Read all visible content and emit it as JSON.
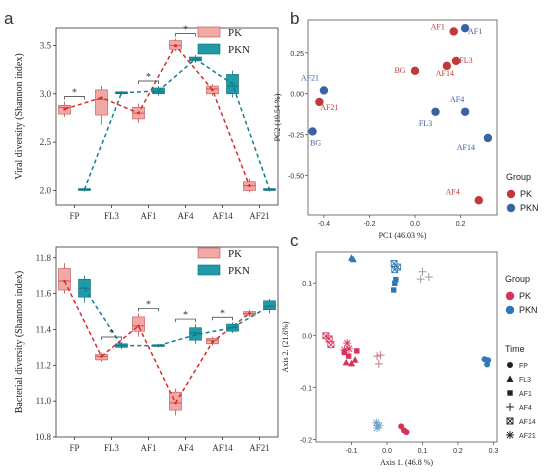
{
  "colors": {
    "pk": "#f2a8a5",
    "pk_edge": "#c0504d",
    "pk_line": "#d92b2b",
    "pkn": "#1f9aa8",
    "pkn_edge": "#176d78",
    "pkn_line": "#127f8c",
    "pca_pk": "#c0393b",
    "pca_pkn": "#3a62a2",
    "pcoa_pk": "#d6335a",
    "pcoa_pkn": "#2d79b8",
    "af4_pkn": "#9aa0a6",
    "af4_pk": "#c77a88"
  },
  "panel_labels": {
    "a": "a",
    "b": "b",
    "c": "c"
  },
  "chart_data": [
    {
      "type": "box",
      "panel": "a-top",
      "ylabel": "Viral diversity (Shannon index)",
      "ylim": [
        1.85,
        3.68
      ],
      "yticks": [
        "2.0",
        "2.5",
        "3.0",
        "3.5"
      ],
      "categories": [
        "FP",
        "FL3",
        "AF1",
        "AF4",
        "AF14",
        "AF21"
      ],
      "legend": [
        "PK",
        "PKN"
      ],
      "significance": [
        "*",
        "",
        "*",
        "*",
        "",
        ""
      ],
      "series": [
        {
          "name": "PK",
          "boxes": [
            [
              2.76,
              2.79,
              2.86,
              2.88,
              2.92
            ],
            [
              2.68,
              2.78,
              2.94,
              3.04,
              3.08
            ],
            [
              2.7,
              2.74,
              2.8,
              2.86,
              2.9
            ],
            [
              3.44,
              3.46,
              3.5,
              3.55,
              3.57
            ],
            [
              2.98,
              3.0,
              3.05,
              3.08,
              3.1
            ],
            [
              1.98,
              2.0,
              2.05,
              2.09,
              2.12
            ]
          ],
          "means": [
            2.84,
            2.96,
            2.8,
            3.5,
            3.04,
            2.05
          ]
        },
        {
          "name": "PKN",
          "boxes": [
            [
              1.99,
              2.0,
              2.01,
              2.02,
              2.03
            ],
            [
              2.99,
              3.0,
              3.01,
              3.02,
              3.03
            ],
            [
              2.98,
              3.0,
              3.02,
              3.06,
              3.08
            ],
            [
              3.32,
              3.34,
              3.36,
              3.38,
              3.4
            ],
            [
              2.96,
              3.0,
              3.08,
              3.2,
              3.24
            ],
            [
              1.99,
              2.0,
              2.01,
              2.02,
              2.03
            ]
          ],
          "means": [
            2.01,
            3.01,
            3.03,
            3.36,
            3.1,
            2.01
          ]
        }
      ]
    },
    {
      "type": "box",
      "panel": "a-bottom",
      "ylabel": "Bacterial diversity (Shannon index)",
      "ylim": [
        10.8,
        11.86
      ],
      "yticks": [
        "10.8",
        "11.0",
        "11.2",
        "11.4",
        "11.6",
        "11.8"
      ],
      "categories": [
        "FP",
        "FL3",
        "AF1",
        "AF4",
        "AF14",
        "AF21"
      ],
      "legend": [
        "PK",
        "PKN"
      ],
      "significance": [
        "",
        "*",
        "*",
        "*",
        "*",
        ""
      ],
      "series": [
        {
          "name": "PK",
          "boxes": [
            [
              11.6,
              11.62,
              11.67,
              11.74,
              11.77
            ],
            [
              11.22,
              11.23,
              11.25,
              11.26,
              11.27
            ],
            [
              11.36,
              11.39,
              11.42,
              11.47,
              11.49
            ],
            [
              10.92,
              10.95,
              10.99,
              11.05,
              11.07
            ],
            [
              11.31,
              11.32,
              11.34,
              11.35,
              11.36
            ],
            [
              11.47,
              11.48,
              11.49,
              11.5,
              11.51
            ]
          ],
          "means": [
            11.67,
            11.25,
            11.42,
            10.99,
            11.33,
            11.49
          ]
        },
        {
          "name": "PKN",
          "boxes": [
            [
              11.55,
              11.58,
              11.63,
              11.68,
              11.7
            ],
            [
              11.29,
              11.3,
              11.31,
              11.32,
              11.33
            ],
            [
              11.3,
              11.305,
              11.31,
              11.315,
              11.32
            ],
            [
              11.32,
              11.34,
              11.38,
              11.41,
              11.43
            ],
            [
              11.38,
              11.39,
              11.41,
              11.43,
              11.44
            ],
            [
              11.49,
              11.51,
              11.53,
              11.56,
              11.57
            ]
          ],
          "means": [
            11.63,
            11.31,
            11.31,
            11.37,
            11.41,
            11.53
          ]
        }
      ]
    },
    {
      "type": "scatter",
      "panel": "b",
      "xlabel": "PC1 (46.03 %)",
      "ylabel": "PC2 (19.54 %)",
      "xlim": [
        -0.47,
        0.36
      ],
      "ylim": [
        -0.74,
        0.45
      ],
      "xticks": [
        "-0.4",
        "-0.2",
        "0.0",
        "0.2"
      ],
      "yticks": [
        "0.25",
        "0.00",
        "-0.25",
        "-0.50"
      ],
      "legend_title": "Group",
      "legend": [
        "PK",
        "PKN"
      ],
      "points": [
        {
          "group": "PK",
          "label": "AF1",
          "x": 0.17,
          "y": 0.38
        },
        {
          "group": "PKN",
          "label": "AF1",
          "x": 0.22,
          "y": 0.4
        },
        {
          "group": "PK",
          "label": "FL3",
          "x": 0.18,
          "y": 0.2
        },
        {
          "group": "PK",
          "label": "AF14",
          "x": 0.14,
          "y": 0.17
        },
        {
          "group": "PK",
          "label": "BG",
          "x": 0.0,
          "y": 0.14
        },
        {
          "group": "PK",
          "label": "AF21",
          "x": -0.42,
          "y": -0.05
        },
        {
          "group": "PKN",
          "label": "AF21",
          "x": -0.4,
          "y": 0.02
        },
        {
          "group": "PKN",
          "label": "FL3",
          "x": 0.09,
          "y": -0.11
        },
        {
          "group": "PKN",
          "label": "AF4",
          "x": 0.22,
          "y": -0.11
        },
        {
          "group": "PKN",
          "label": "AF14",
          "x": 0.32,
          "y": -0.27
        },
        {
          "group": "PKN",
          "label": "BG",
          "x": -0.45,
          "y": -0.23
        },
        {
          "group": "PK",
          "label": "AF4",
          "x": 0.28,
          "y": -0.65
        }
      ]
    },
    {
      "type": "scatter",
      "panel": "c",
      "xlabel": "Axis 1. (46.8 %)",
      "ylabel": "Axis 2. (21.6%)",
      "xlim": [
        -0.2,
        0.31
      ],
      "ylim": [
        -0.205,
        0.16
      ],
      "xticks": [
        "-0.1",
        "0.0",
        "0.1",
        "0.2",
        "0.3"
      ],
      "yticks": [
        "0.1",
        "0.0",
        "-0.1",
        "-0.2"
      ],
      "legend_title": "Group",
      "legend": [
        "PK",
        "PKN"
      ],
      "shape_legend_title": "Time",
      "shape_legend": [
        {
          "name": "FP",
          "shape": "circle"
        },
        {
          "name": "FL3",
          "shape": "triangle"
        },
        {
          "name": "AF1",
          "shape": "square"
        },
        {
          "name": "AF4",
          "shape": "plus"
        },
        {
          "name": "AF14",
          "shape": "boxcross"
        },
        {
          "name": "AF21",
          "shape": "asterisk"
        }
      ],
      "points": [
        {
          "group": "PKN",
          "time": "FL3",
          "x": -0.1,
          "y": 0.149
        },
        {
          "group": "PKN",
          "time": "FL3",
          "x": -0.095,
          "y": 0.146
        },
        {
          "group": "PKN",
          "time": "AF14",
          "x": 0.02,
          "y": 0.138
        },
        {
          "group": "PKN",
          "time": "AF14",
          "x": 0.03,
          "y": 0.131
        },
        {
          "group": "PKN",
          "time": "AF14",
          "x": 0.022,
          "y": 0.126
        },
        {
          "group": "PKN",
          "time": "AF4",
          "x": 0.1,
          "y": 0.122
        },
        {
          "group": "PKN",
          "time": "AF4",
          "x": 0.118,
          "y": 0.112
        },
        {
          "group": "PKN",
          "time": "AF4",
          "x": 0.095,
          "y": 0.108
        },
        {
          "group": "PKN",
          "time": "AF1",
          "x": 0.025,
          "y": 0.107
        },
        {
          "group": "PKN",
          "time": "AF1",
          "x": 0.022,
          "y": 0.1
        },
        {
          "group": "PKN",
          "time": "AF1",
          "x": 0.019,
          "y": 0.087
        },
        {
          "group": "PKN",
          "time": "FP",
          "x": 0.275,
          "y": -0.046
        },
        {
          "group": "PKN",
          "time": "FP",
          "x": 0.285,
          "y": -0.048
        },
        {
          "group": "PKN",
          "time": "FP",
          "x": 0.282,
          "y": -0.056
        },
        {
          "group": "PKN",
          "time": "AF21",
          "x": -0.03,
          "y": -0.168
        },
        {
          "group": "PKN",
          "time": "AF21",
          "x": -0.022,
          "y": -0.173
        },
        {
          "group": "PKN",
          "time": "AF21",
          "x": -0.028,
          "y": -0.178
        },
        {
          "group": "PK",
          "time": "AF14",
          "x": -0.172,
          "y": -0.001
        },
        {
          "group": "PK",
          "time": "AF14",
          "x": -0.163,
          "y": -0.007
        },
        {
          "group": "PK",
          "time": "AF14",
          "x": -0.158,
          "y": -0.018
        },
        {
          "group": "PK",
          "time": "AF21",
          "x": -0.112,
          "y": -0.015
        },
        {
          "group": "PK",
          "time": "AF21",
          "x": -0.107,
          "y": -0.026
        },
        {
          "group": "PK",
          "time": "AF21",
          "x": -0.12,
          "y": -0.028
        },
        {
          "group": "PK",
          "time": "AF1",
          "x": -0.12,
          "y": -0.033
        },
        {
          "group": "PK",
          "time": "AF1",
          "x": -0.108,
          "y": -0.04
        },
        {
          "group": "PK",
          "time": "AF1",
          "x": -0.085,
          "y": -0.03
        },
        {
          "group": "PK",
          "time": "FL3",
          "x": -0.115,
          "y": -0.052
        },
        {
          "group": "PK",
          "time": "FL3",
          "x": -0.1,
          "y": -0.054
        },
        {
          "group": "PK",
          "time": "FL3",
          "x": -0.09,
          "y": -0.047
        },
        {
          "group": "PK",
          "time": "AF4",
          "x": -0.028,
          "y": -0.04
        },
        {
          "group": "PK",
          "time": "AF4",
          "x": -0.018,
          "y": -0.038
        },
        {
          "group": "PK",
          "time": "AF4",
          "x": -0.023,
          "y": -0.055
        },
        {
          "group": "PK",
          "time": "FP",
          "x": 0.04,
          "y": -0.175
        },
        {
          "group": "PK",
          "time": "FP",
          "x": 0.048,
          "y": -0.183
        },
        {
          "group": "PK",
          "time": "FP",
          "x": 0.055,
          "y": -0.186
        }
      ]
    }
  ]
}
